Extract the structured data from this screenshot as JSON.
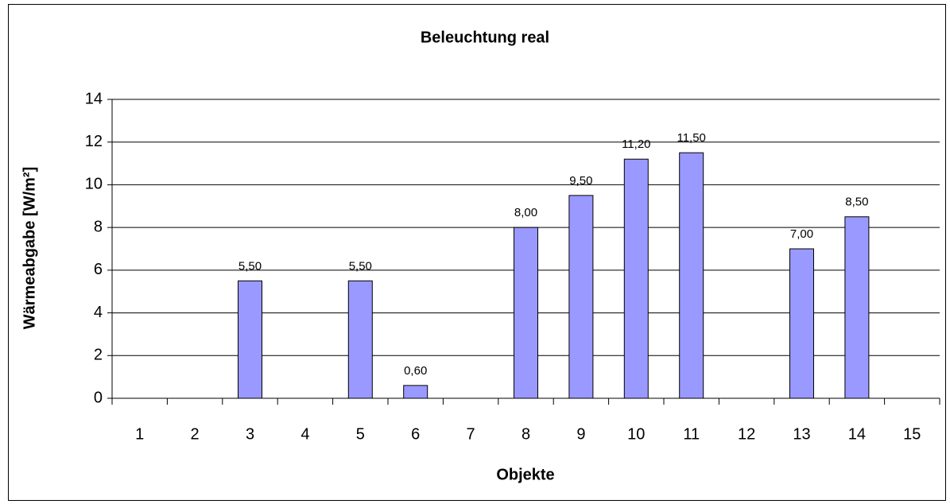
{
  "chart_data": {
    "type": "bar",
    "title": "Beleuchtung real",
    "x_label": "Objekte",
    "y_label": "Wärmeabgabe [W/m²]",
    "categories": [
      "1",
      "2",
      "3",
      "4",
      "5",
      "6",
      "7",
      "8",
      "9",
      "10",
      "11",
      "12",
      "13",
      "14",
      "15"
    ],
    "values": [
      null,
      null,
      5.5,
      null,
      5.5,
      0.6,
      null,
      8,
      9.5,
      11.2,
      11.5,
      null,
      7,
      8.5,
      null
    ],
    "value_labels": [
      null,
      null,
      "5,50",
      null,
      "5,50",
      "0,60",
      null,
      "8,00",
      "9,50",
      "11,20",
      "11,50",
      null,
      "7,00",
      "8,50",
      null
    ],
    "color": "#9999ff",
    "ylim": [
      0,
      14
    ],
    "yticks": [
      0,
      2,
      4,
      6,
      8,
      10,
      12,
      14
    ],
    "grid": true
  }
}
